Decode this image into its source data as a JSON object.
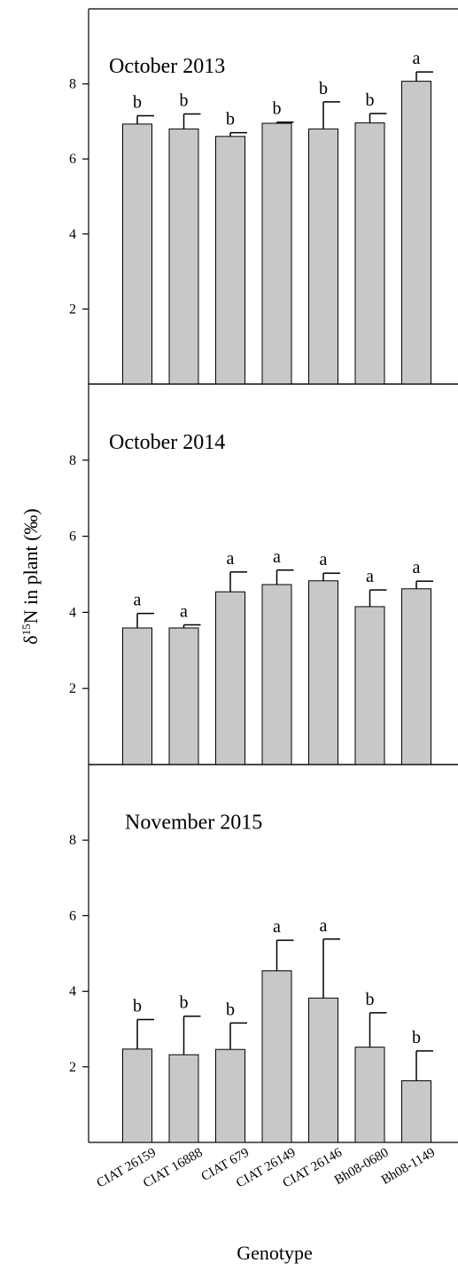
{
  "figure": {
    "ylabel_main": "δ",
    "ylabel_sup": "15",
    "ylabel_rest": "N in plant (‰)",
    "xlabel": "Genotype"
  },
  "colors": {
    "bar_fill": "#c8c8c8",
    "axis": "#000000"
  },
  "chart_data": [
    {
      "type": "bar",
      "title": "October 2013",
      "ylim": [
        0,
        10
      ],
      "yticks": [
        2,
        4,
        6,
        8
      ],
      "categories": [
        "CIAT 26159",
        "CIAT 16888",
        "CIAT 679",
        "CIAT 26149",
        "CIAT 26146",
        "Bh08-0680",
        "Bh08-1149"
      ],
      "values": [
        6.93,
        6.8,
        6.6,
        6.95,
        6.8,
        6.96,
        8.07
      ],
      "errors": [
        0.22,
        0.4,
        0.1,
        0.03,
        0.72,
        0.25,
        0.25
      ],
      "letters": [
        "b",
        "b",
        "b",
        "b",
        "b",
        "b",
        "a"
      ]
    },
    {
      "type": "bar",
      "title": "October 2014",
      "ylim": [
        0,
        10
      ],
      "yticks": [
        2,
        4,
        6,
        8
      ],
      "categories": [
        "CIAT 26159",
        "CIAT 16888",
        "CIAT 679",
        "CIAT 26149",
        "CIAT 26146",
        "Bh08-0680",
        "Bh08-1149"
      ],
      "values": [
        3.59,
        3.59,
        4.54,
        4.73,
        4.83,
        4.15,
        4.62
      ],
      "errors": [
        0.38,
        0.08,
        0.52,
        0.38,
        0.2,
        0.44,
        0.2
      ],
      "letters": [
        "a",
        "a",
        "a",
        "a",
        "a",
        "a",
        "a"
      ]
    },
    {
      "type": "bar",
      "title": "November 2015",
      "ylim": [
        0,
        10
      ],
      "yticks": [
        2,
        4,
        6,
        8
      ],
      "categories": [
        "CIAT 26159",
        "CIAT 16888",
        "CIAT 679",
        "CIAT 26149",
        "CIAT 26146",
        "Bh08-0680",
        "Bh08-1149"
      ],
      "values": [
        2.47,
        2.32,
        2.46,
        4.54,
        3.82,
        2.52,
        1.63
      ],
      "errors": [
        0.78,
        1.02,
        0.7,
        0.81,
        1.56,
        0.91,
        0.79
      ],
      "letters": [
        "b",
        "b",
        "b",
        "a",
        "a",
        "b",
        "b"
      ]
    }
  ]
}
